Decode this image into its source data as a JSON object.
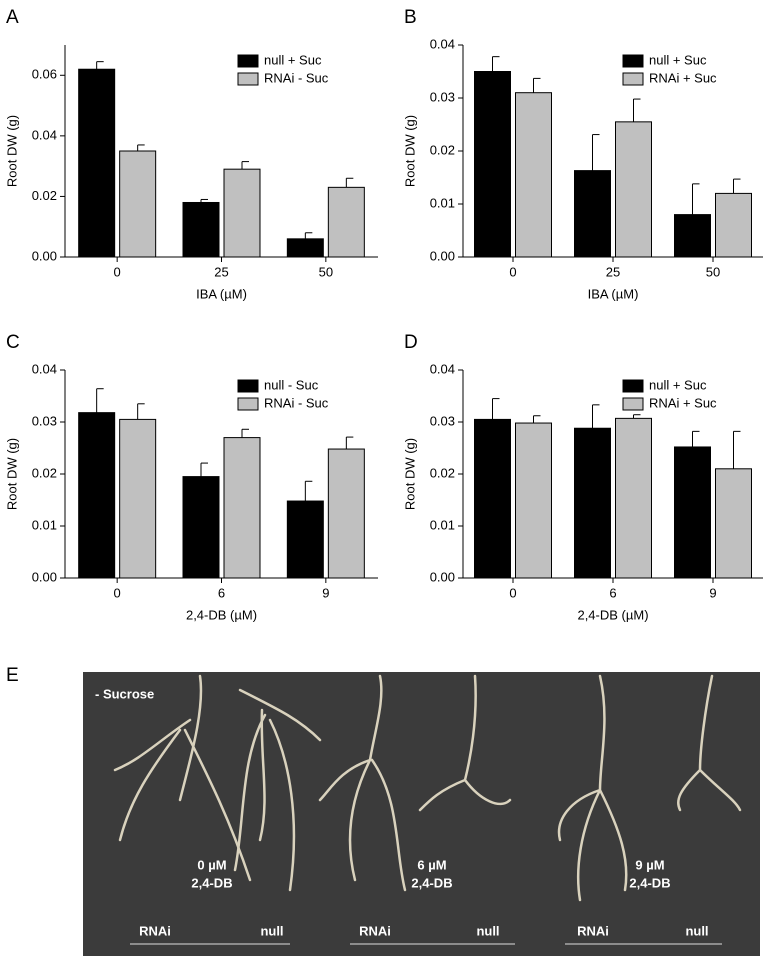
{
  "chart_data": [
    {
      "type": "bar",
      "label": "A",
      "xlabel": "IBA (µM)",
      "ylabel": "Root DW (g)",
      "legend": "upper right",
      "categories": [
        "0",
        "25",
        "50"
      ],
      "series": [
        {
          "name": "null + Suc",
          "color": "#000000",
          "values": [
            0.062,
            0.018,
            0.006
          ],
          "errors": [
            0.0025,
            0.001,
            0.002
          ]
        },
        {
          "name": "RNAi - Suc",
          "color": "#c0c0c0",
          "values": [
            0.035,
            0.029,
            0.023
          ],
          "errors": [
            0.002,
            0.0025,
            0.003
          ]
        }
      ],
      "ylim": [
        0,
        0.07
      ],
      "yticks": [
        {
          "value": 0,
          "label": "0.00"
        },
        0.02,
        0.04,
        0.06
      ]
    },
    {
      "type": "bar",
      "label": "B",
      "xlabel": "IBA (µM)",
      "ylabel": "Root DW (g)",
      "legend": "upper right",
      "categories": [
        "0",
        "25",
        "50"
      ],
      "series": [
        {
          "name": "null + Suc",
          "color": "#000000",
          "values": [
            0.035,
            0.0163,
            0.008
          ],
          "errors": [
            0.0028,
            0.0068,
            0.0058
          ]
        },
        {
          "name": "RNAi + Suc",
          "color": "#c0c0c0",
          "values": [
            0.031,
            0.0255,
            0.012
          ],
          "errors": [
            0.0027,
            0.0043,
            0.0027
          ]
        }
      ],
      "ylim": [
        0,
        0.04
      ],
      "yticks": [
        {
          "value": 0,
          "label": "0.00"
        },
        0.01,
        0.02,
        0.03,
        0.04
      ]
    },
    {
      "type": "bar",
      "label": "C",
      "xlabel": "2,4-DB (µM)",
      "ylabel": "Root DW (g)",
      "legend": "upper right",
      "categories": [
        "0",
        "6",
        "9"
      ],
      "series": [
        {
          "name": "null - Suc",
          "color": "#000000",
          "values": [
            0.0318,
            0.0195,
            0.0148
          ],
          "errors": [
            0.0046,
            0.0026,
            0.0038
          ]
        },
        {
          "name": "RNAi - Suc",
          "color": "#c0c0c0",
          "values": [
            0.0305,
            0.027,
            0.0248
          ],
          "errors": [
            0.003,
            0.0016,
            0.0023
          ]
        }
      ],
      "ylim": [
        0,
        0.04
      ],
      "yticks": [
        {
          "value": 0,
          "label": "0.00"
        },
        0.01,
        0.02,
        0.03,
        0.04
      ]
    },
    {
      "type": "bar",
      "label": "D",
      "xlabel": "2,4-DB (µM)",
      "ylabel": "Root DW (g)",
      "legend": "upper right",
      "categories": [
        "0",
        "6",
        "9"
      ],
      "series": [
        {
          "name": "null + Suc",
          "color": "#000000",
          "values": [
            0.0305,
            0.0288,
            0.0252
          ],
          "errors": [
            0.004,
            0.0045,
            0.003
          ]
        },
        {
          "name": "RNAi + Suc",
          "color": "#c0c0c0",
          "values": [
            0.0298,
            0.0307,
            0.021
          ],
          "errors": [
            0.0014,
            0.0007,
            0.0072
          ]
        }
      ],
      "ylim": [
        0,
        0.04
      ],
      "yticks": [
        {
          "value": 0,
          "label": "0.00"
        },
        0.01,
        0.02,
        0.03,
        0.04
      ]
    }
  ],
  "photo": {
    "label": "E",
    "condition": "- Sucrose",
    "groups": [
      {
        "dose": "0 µM",
        "compound": "2,4-DB",
        "lines": [
          "RNAi",
          "null"
        ]
      },
      {
        "dose": "6 µM",
        "compound": "2,4-DB",
        "lines": [
          "RNAi",
          "null"
        ]
      },
      {
        "dose": "9 µM",
        "compound": "2,4-DB",
        "lines": [
          "RNAi",
          "null"
        ]
      }
    ]
  }
}
